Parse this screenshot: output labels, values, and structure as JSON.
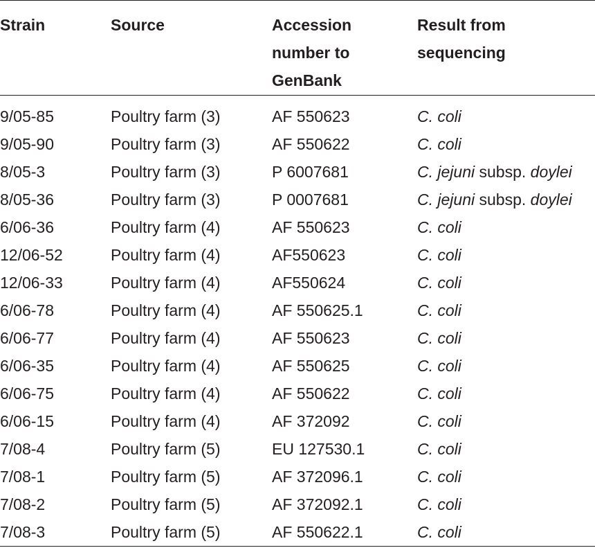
{
  "table": {
    "headers": {
      "strain": "Strain",
      "source": "Source",
      "accession_line1": "Accession",
      "accession_line2": "number to",
      "accession_line3": "GenBank",
      "result_line1": "Result from",
      "result_line2": "sequencing"
    },
    "rows": [
      {
        "strain": "9/05-85",
        "source": "Poultry farm (3)",
        "accession": "AF 550623",
        "result_species": "C. coli",
        "result_rest": "",
        "result_sub": ""
      },
      {
        "strain": "9/05-90",
        "source": "Poultry farm (3)",
        "accession": "AF 550622",
        "result_species": "C. coli",
        "result_rest": "",
        "result_sub": ""
      },
      {
        "strain": "8/05-3",
        "source": "Poultry farm (3)",
        "accession": "P 6007681",
        "result_species": "C. jejuni",
        "result_rest": " subsp. ",
        "result_sub": "doylei"
      },
      {
        "strain": "8/05-36",
        "source": "Poultry farm (3)",
        "accession": "P 0007681",
        "result_species": "C. jejuni",
        "result_rest": " subsp. ",
        "result_sub": "doylei"
      },
      {
        "strain": "6/06-36",
        "source": "Poultry farm (4)",
        "accession": "AF 550623",
        "result_species": "C. coli",
        "result_rest": "",
        "result_sub": ""
      },
      {
        "strain": "12/06-52",
        "source": "Poultry farm (4)",
        "accession": "AF550623",
        "result_species": "C. coli",
        "result_rest": "",
        "result_sub": ""
      },
      {
        "strain": "12/06-33",
        "source": "Poultry farm (4)",
        "accession": "AF550624",
        "result_species": "C. coli",
        "result_rest": "",
        "result_sub": ""
      },
      {
        "strain": "6/06-78",
        "source": "Poultry farm (4)",
        "accession": "AF 550625.1",
        "result_species": "C. coli",
        "result_rest": "",
        "result_sub": ""
      },
      {
        "strain": "6/06-77",
        "source": "Poultry farm (4)",
        "accession": "AF 550623",
        "result_species": "C. coli",
        "result_rest": "",
        "result_sub": ""
      },
      {
        "strain": "6/06-35",
        "source": "Poultry farm (4)",
        "accession": "AF 550625",
        "result_species": "C. coli",
        "result_rest": "",
        "result_sub": ""
      },
      {
        "strain": "6/06-75",
        "source": "Poultry farm (4)",
        "accession": "AF 550622",
        "result_species": "C. coli",
        "result_rest": "",
        "result_sub": ""
      },
      {
        "strain": "6/06-15",
        "source": "Poultry farm (4)",
        "accession": "AF 372092",
        "result_species": "C. coli",
        "result_rest": "",
        "result_sub": ""
      },
      {
        "strain": "7/08-4",
        "source": "Poultry farm (5)",
        "accession": "EU 127530.1",
        "result_species": "C. coli",
        "result_rest": "",
        "result_sub": ""
      },
      {
        "strain": "7/08-1",
        "source": "Poultry farm (5)",
        "accession": "AF 372096.1",
        "result_species": "C. coli",
        "result_rest": "",
        "result_sub": ""
      },
      {
        "strain": "7/08-2",
        "source": "Poultry farm (5)",
        "accession": "AF 372092.1",
        "result_species": "C. coli",
        "result_rest": "",
        "result_sub": ""
      },
      {
        "strain": "7/08-3",
        "source": "Poultry farm (5)",
        "accession": "AF 550622.1",
        "result_species": "C. coli",
        "result_rest": "",
        "result_sub": ""
      }
    ]
  },
  "colors": {
    "text": "#231f20",
    "rule": "#231f20",
    "background": "#ffffff"
  }
}
